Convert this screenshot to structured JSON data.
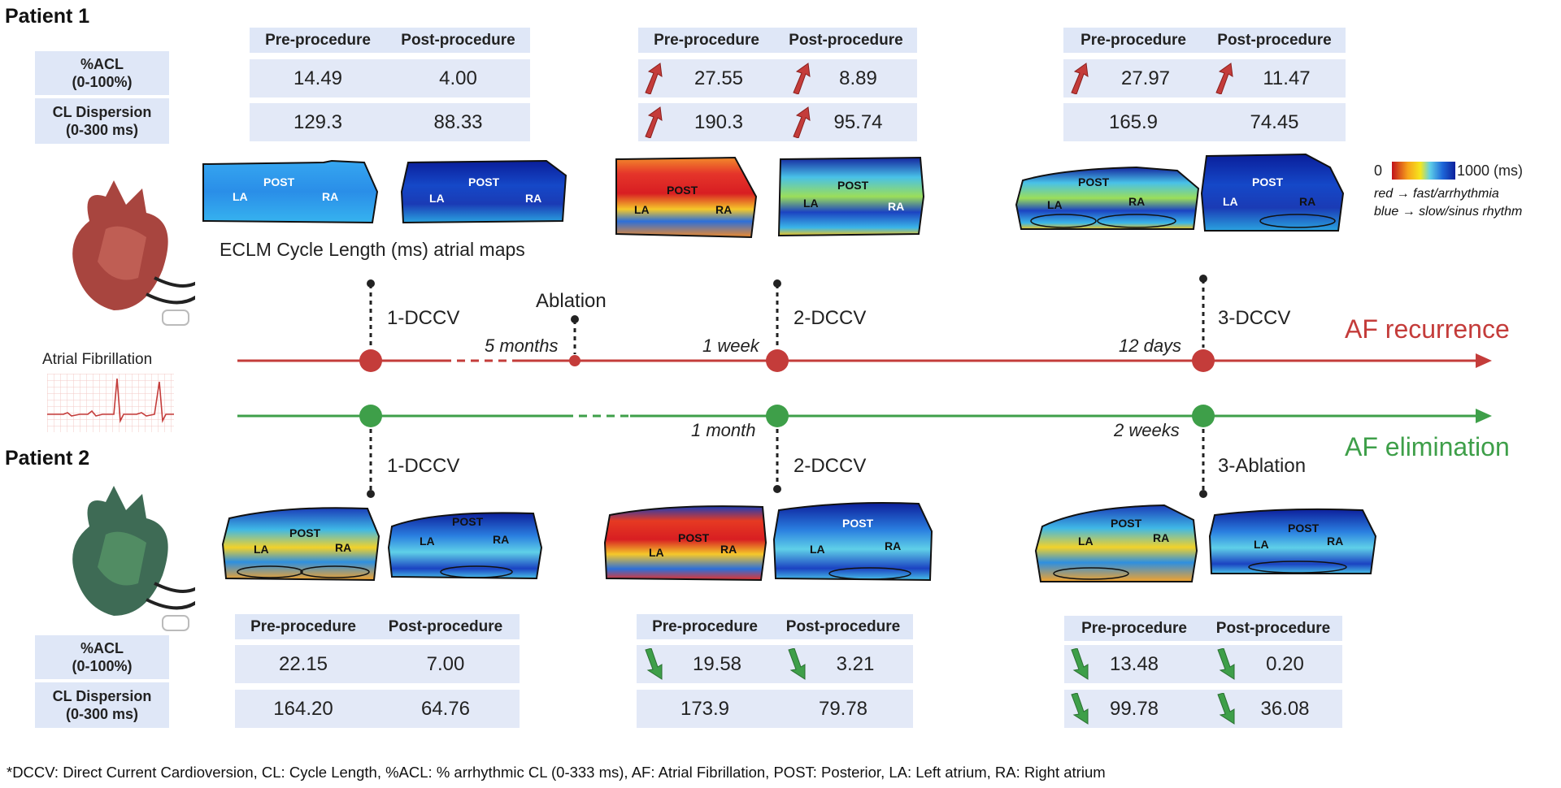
{
  "patient1": {
    "title": "Patient 1",
    "row_labels": {
      "acl": "%ACL\n(0-100%)",
      "cl": "CL Dispersion\n(0-300 ms)"
    },
    "tables": [
      {
        "pre_header": "Pre-procedure",
        "post_header": "Post-procedure",
        "acl_pre": "14.49",
        "acl_post": "4.00",
        "cl_pre": "129.3",
        "cl_post": "88.33"
      },
      {
        "pre_header": "Pre-procedure",
        "post_header": "Post-procedure",
        "acl_pre": "27.55",
        "acl_post": "8.89",
        "cl_pre": "190.3",
        "cl_post": "95.74"
      },
      {
        "pre_header": "Pre-procedure",
        "post_header": "Post-procedure",
        "acl_pre": "27.97",
        "acl_post": "11.47",
        "cl_pre": "165.9",
        "cl_post": "74.45"
      }
    ],
    "events": [
      "1-DCCV",
      "2-DCCV",
      "3-DCCV"
    ],
    "ablation_label": "Ablation",
    "intervals": [
      "5 months",
      "1 week",
      "12 days"
    ],
    "outcome": "AF recurrence"
  },
  "patient2": {
    "title": "Patient 2",
    "row_labels": {
      "acl": "%ACL\n(0-100%)",
      "cl": "CL Dispersion\n(0-300 ms)"
    },
    "tables": [
      {
        "pre_header": "Pre-procedure",
        "post_header": "Post-procedure",
        "acl_pre": "22.15",
        "acl_post": "7.00",
        "cl_pre": "164.20",
        "cl_post": "64.76"
      },
      {
        "pre_header": "Pre-procedure",
        "post_header": "Post-procedure",
        "acl_pre": "19.58",
        "acl_post": "3.21",
        "cl_pre": "173.9",
        "cl_post": "79.78"
      },
      {
        "pre_header": "Pre-procedure",
        "post_header": "Post-procedure",
        "acl_pre": "13.48",
        "acl_post": "0.20",
        "cl_pre": "99.78",
        "cl_post": "36.08"
      }
    ],
    "events": [
      "1-DCCV",
      "2-DCCV",
      "3-Ablation"
    ],
    "intervals": [
      "1 month",
      "2 weeks"
    ],
    "outcome": "AF elimination"
  },
  "map_labels": {
    "post": "POST",
    "la": "LA",
    "ra": "RA"
  },
  "maps_caption": "ECLM Cycle Length (ms) atrial maps",
  "legend": {
    "min": "0",
    "max": "1000 (ms)",
    "note_red": "red → fast/arrhythmia",
    "note_blue": "blue → slow/sinus rhythm"
  },
  "ecg_label": "Atrial Fibrillation",
  "footnote": "*DCCV: Direct Current Cardioversion, CL: Cycle Length, %ACL: % arrhythmic CL (0-333 ms), AF: Atrial Fibrillation, POST: Posterior, LA: Left atrium, RA: Right atrium",
  "colors": {
    "red": "#c43c3a",
    "green": "#3e9f49",
    "table_bg": "#e3e9f7",
    "heart1": "#a8453f",
    "heart2": "#3e6b55"
  }
}
